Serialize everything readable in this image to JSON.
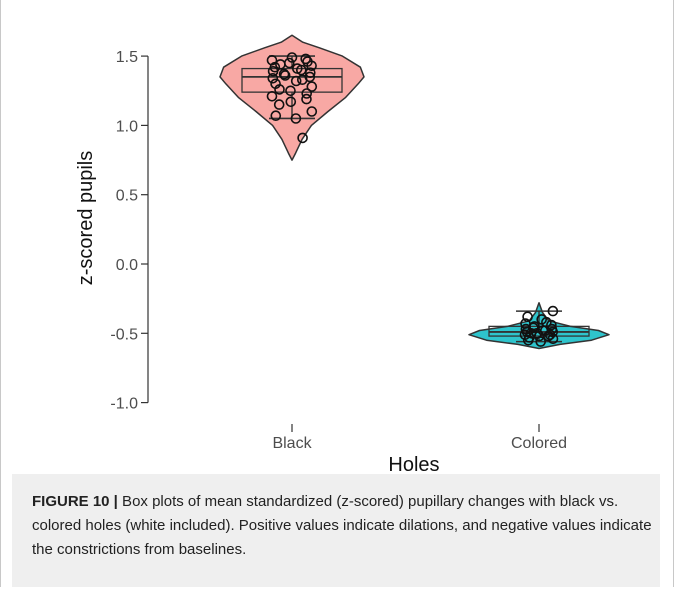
{
  "chart_data": {
    "type": "violin_box_jitter",
    "xlabel": "Holes",
    "ylabel": "z-scored pupils",
    "ylim": [
      -1.0,
      1.6
    ],
    "yticks": [
      1.5,
      1.0,
      0.5,
      0.0,
      -0.5,
      -1.0
    ],
    "ytick_labels": [
      "1.5",
      "1.0",
      "0.5",
      "0.0",
      "-0.5",
      "-1.0"
    ],
    "grid": false,
    "categories": [
      "Black",
      "Colored"
    ],
    "groups": [
      {
        "category": "Black",
        "fill": "#f8a8a4",
        "box": {
          "min": 1.05,
          "q1": 1.24,
          "median": 1.35,
          "q3": 1.41,
          "max": 1.5
        },
        "violin": {
          "min": 0.75,
          "max": 1.65,
          "density": [
            [
              0.75,
              0.0
            ],
            [
              0.8,
              0.05
            ],
            [
              0.9,
              0.14
            ],
            [
              1.0,
              0.27
            ],
            [
              1.1,
              0.5
            ],
            [
              1.2,
              0.74
            ],
            [
              1.3,
              0.92
            ],
            [
              1.35,
              1.0
            ],
            [
              1.42,
              0.95
            ],
            [
              1.5,
              0.7
            ],
            [
              1.56,
              0.38
            ],
            [
              1.6,
              0.15
            ],
            [
              1.65,
              0.0
            ]
          ]
        },
        "points": [
          1.49,
          1.48,
          1.47,
          1.46,
          1.45,
          1.44,
          1.43,
          1.42,
          1.41,
          1.4,
          1.39,
          1.38,
          1.37,
          1.36,
          1.35,
          1.34,
          1.33,
          1.32,
          1.3,
          1.28,
          1.26,
          1.25,
          1.23,
          1.21,
          1.19,
          1.17,
          1.15,
          1.1,
          1.07,
          1.05,
          0.91
        ]
      },
      {
        "category": "Colored",
        "fill": "#2ec4cc",
        "box": {
          "min": -0.56,
          "q1": -0.52,
          "median": -0.49,
          "q3": -0.45,
          "max": -0.34
        },
        "violin": {
          "min": -0.61,
          "max": -0.28,
          "density": [
            [
              -0.61,
              0.0
            ],
            [
              -0.58,
              0.3
            ],
            [
              -0.55,
              0.75
            ],
            [
              -0.51,
              1.0
            ],
            [
              -0.48,
              0.85
            ],
            [
              -0.45,
              0.45
            ],
            [
              -0.41,
              0.14
            ],
            [
              -0.35,
              0.05
            ],
            [
              -0.28,
              0.0
            ]
          ]
        },
        "points": [
          -0.34,
          -0.38,
          -0.4,
          -0.42,
          -0.43,
          -0.44,
          -0.45,
          -0.46,
          -0.47,
          -0.47,
          -0.48,
          -0.48,
          -0.49,
          -0.49,
          -0.5,
          -0.5,
          -0.51,
          -0.51,
          -0.52,
          -0.52,
          -0.53,
          -0.54,
          -0.55,
          -0.56
        ]
      }
    ]
  },
  "caption": {
    "label": "FIGURE 10 |",
    "text": " Box plots of mean standardized (z-scored) pupillary changes with black vs. colored holes (white included). Positive values indicate dilations, and negative values indicate the constrictions from baselines."
  },
  "colors": {
    "outline": "#333333",
    "axis": "#333333",
    "tick_text": "#4d4d4d"
  }
}
